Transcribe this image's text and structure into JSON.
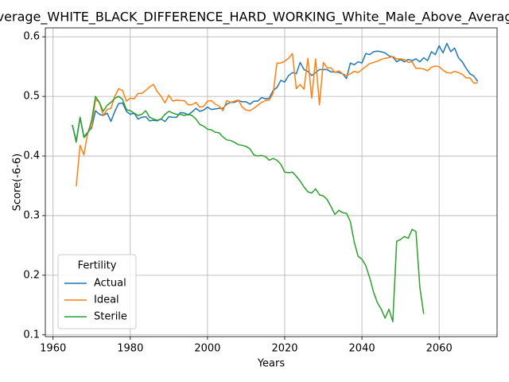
{
  "chart_data": {
    "type": "line",
    "title": "Average_WHITE_BLACK_DIFFERENCE_HARD_WORKING_White_Male_Above_Average",
    "xlabel": "Years",
    "ylabel": "Score(-6-6)",
    "legend_title": "Fertility",
    "legend": "lower left",
    "grid": true,
    "xlim": [
      1958,
      2075
    ],
    "xticks": [
      1960,
      1980,
      2000,
      2020,
      2040,
      2060
    ],
    "ylim": [
      0.097,
      0.615
    ],
    "yticks": [
      0.1,
      0.2,
      0.3,
      0.4,
      0.5,
      0.6
    ],
    "x": [
      1965,
      1966,
      1967,
      1968,
      1969,
      1970,
      1971,
      1972,
      1973,
      1974,
      1975,
      1976,
      1977,
      1978,
      1979,
      1980,
      1981,
      1982,
      1983,
      1984,
      1985,
      1986,
      1987,
      1988,
      1989,
      1990,
      1991,
      1992,
      1993,
      1994,
      1995,
      1996,
      1997,
      1998,
      1999,
      2000,
      2001,
      2002,
      2003,
      2004,
      2005,
      2006,
      2007,
      2008,
      2009,
      2010,
      2011,
      2012,
      2013,
      2014,
      2015,
      2016,
      2017,
      2018,
      2019,
      2020,
      2021,
      2022,
      2023,
      2024,
      2025,
      2026,
      2027,
      2028,
      2029,
      2030,
      2031,
      2032,
      2033,
      2034,
      2035,
      2036,
      2037,
      2038,
      2039,
      2040,
      2041,
      2042,
      2043,
      2044,
      2045,
      2046,
      2047,
      2048,
      2049,
      2050,
      2051,
      2052,
      2053,
      2054,
      2055,
      2056,
      2057,
      2058,
      2059,
      2060,
      2061,
      2062,
      2063,
      2064,
      2065,
      2066,
      2067,
      2068,
      2069,
      2070
    ],
    "series": [
      {
        "name": "Actual",
        "color": "#1f77b4",
        "values": [
          0.452,
          0.425,
          0.465,
          0.432,
          0.44,
          0.447,
          0.476,
          0.47,
          0.468,
          0.472,
          0.458,
          0.475,
          0.488,
          0.489,
          0.475,
          0.47,
          0.472,
          0.462,
          0.465,
          0.466,
          0.459,
          0.46,
          0.459,
          0.462,
          0.458,
          0.466,
          0.465,
          0.465,
          0.473,
          0.472,
          0.469,
          0.474,
          0.48,
          0.475,
          0.477,
          0.482,
          0.478,
          0.479,
          0.48,
          0.48,
          0.487,
          0.49,
          0.49,
          0.493,
          0.491,
          0.491,
          0.487,
          0.492,
          0.492,
          0.498,
          0.496,
          0.497,
          0.51,
          0.515,
          0.527,
          0.524,
          0.535,
          0.54,
          0.538,
          0.557,
          0.545,
          0.542,
          0.535,
          0.54,
          0.545,
          0.545,
          0.545,
          0.541,
          0.541,
          0.54,
          0.538,
          0.53,
          0.556,
          0.553,
          0.558,
          0.556,
          0.572,
          0.57,
          0.575,
          0.576,
          0.575,
          0.573,
          0.568,
          0.566,
          0.558,
          0.562,
          0.558,
          0.562,
          0.56,
          0.563,
          0.558,
          0.565,
          0.56,
          0.575,
          0.57,
          0.585,
          0.573,
          0.589,
          0.575,
          0.581,
          0.565,
          0.558,
          0.547,
          0.538,
          0.534,
          0.525
        ]
      },
      {
        "name": "Ideal",
        "color": "#ff7f0e",
        "values": [
          null,
          0.349,
          0.418,
          0.402,
          0.44,
          0.45,
          0.495,
          0.49,
          0.468,
          0.478,
          0.48,
          0.5,
          0.513,
          0.51,
          0.492,
          0.497,
          0.496,
          0.505,
          0.505,
          0.51,
          0.516,
          0.52,
          0.508,
          0.5,
          0.489,
          0.502,
          0.492,
          0.494,
          0.493,
          0.493,
          0.486,
          0.486,
          0.49,
          0.482,
          0.483,
          0.492,
          0.493,
          0.487,
          0.484,
          0.476,
          0.493,
          0.49,
          0.492,
          0.494,
          0.482,
          0.477,
          0.476,
          0.48,
          0.485,
          0.49,
          0.493,
          0.494,
          0.505,
          0.556,
          0.556,
          0.559,
          0.564,
          0.572,
          0.513,
          0.52,
          0.512,
          0.564,
          0.497,
          0.563,
          0.486,
          0.557,
          0.548,
          0.548,
          0.54,
          0.543,
          0.538,
          0.535,
          0.538,
          0.542,
          0.54,
          0.545,
          0.55,
          0.555,
          0.557,
          0.559,
          0.562,
          0.564,
          0.565,
          0.567,
          0.563,
          0.563,
          0.562,
          0.557,
          0.558,
          0.547,
          0.547,
          0.546,
          0.543,
          0.549,
          0.551,
          0.55,
          0.544,
          0.54,
          0.539,
          0.542,
          0.54,
          0.537,
          0.531,
          0.531,
          0.522,
          0.523
        ]
      },
      {
        "name": "Sterile",
        "color": "#2ca02c",
        "values": [
          0.452,
          0.423,
          0.465,
          0.431,
          0.438,
          0.46,
          0.5,
          0.49,
          0.475,
          0.485,
          0.49,
          0.497,
          0.5,
          0.495,
          0.478,
          0.476,
          0.472,
          0.468,
          0.47,
          0.476,
          0.465,
          0.462,
          0.46,
          0.462,
          0.47,
          0.475,
          0.472,
          0.47,
          0.47,
          0.468,
          0.47,
          0.468,
          0.462,
          0.453,
          0.45,
          0.445,
          0.444,
          0.44,
          0.439,
          0.432,
          0.427,
          0.426,
          0.423,
          0.419,
          0.418,
          0.416,
          0.412,
          0.402,
          0.4,
          0.401,
          0.399,
          0.393,
          0.396,
          0.393,
          0.386,
          0.373,
          0.372,
          0.373,
          0.366,
          0.358,
          0.348,
          0.34,
          0.338,
          0.345,
          0.335,
          0.333,
          0.327,
          0.315,
          0.302,
          0.309,
          0.305,
          0.304,
          0.29,
          0.256,
          0.232,
          0.227,
          0.216,
          0.196,
          0.172,
          0.154,
          0.143,
          0.128,
          0.143,
          0.122,
          0.257,
          0.26,
          0.265,
          0.262,
          0.277,
          0.273,
          0.18,
          0.135,
          null,
          null,
          null,
          null,
          null,
          null,
          null,
          null,
          null,
          null,
          null,
          null,
          null,
          null
        ]
      }
    ]
  }
}
